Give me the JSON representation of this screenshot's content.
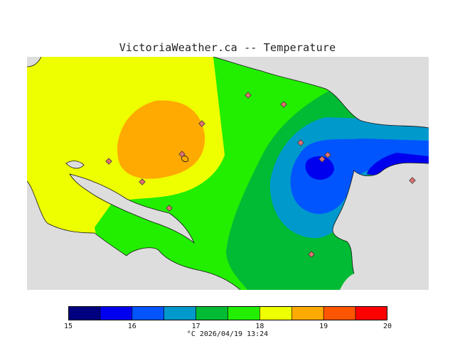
{
  "title": "VictoriaWeather.ca -- Temperature",
  "legend": {
    "colors": [
      "#000080",
      "#0000ee",
      "#0055ff",
      "#0099cc",
      "#00bb33",
      "#22ee00",
      "#eeff00",
      "#ffaa00",
      "#ff5500",
      "#ff0000"
    ],
    "ticks": [
      {
        "label": "15",
        "value": 15
      },
      {
        "label": "16",
        "value": 16
      },
      {
        "label": "17",
        "value": 17
      },
      {
        "label": "18",
        "value": 18
      },
      {
        "label": "19",
        "value": 19
      },
      {
        "label": "20",
        "value": 20
      }
    ],
    "min": 15,
    "max": 20
  },
  "units_line": "°C  2026/04/19 13:24",
  "map": {
    "land_color": "#eeff00",
    "water_color": "#dddddd",
    "station_marker_color": "#e07070"
  }
}
